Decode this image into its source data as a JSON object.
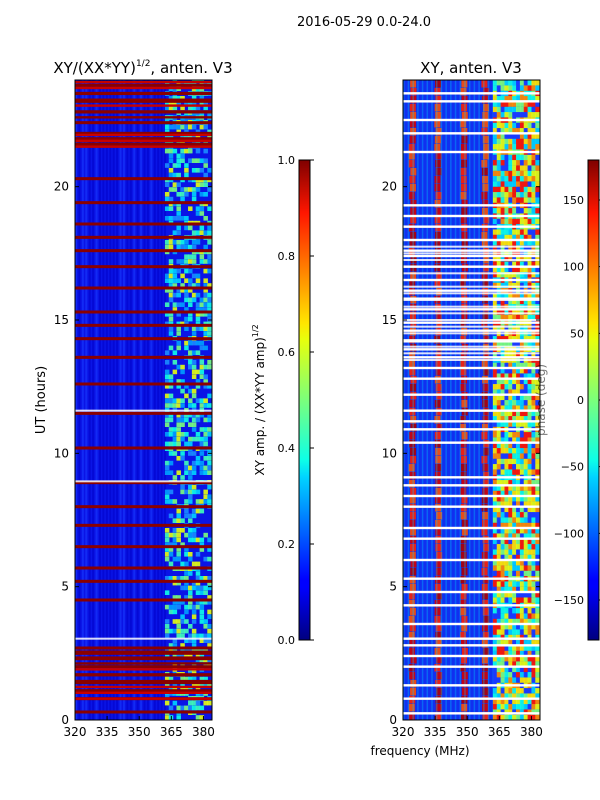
{
  "figure": {
    "suptitle": "2016-05-29 0.0-24.0"
  },
  "chart_data": [
    {
      "type": "heatmap",
      "title_main": "XY/(XX*YY)",
      "title_sup": "1/2",
      "title_tail": ", anten. V3",
      "ylabel": "UT (hours)",
      "xlabel": "",
      "xlim": [
        320,
        384
      ],
      "ylim": [
        0,
        24
      ],
      "xticks": [
        320,
        335,
        350,
        365,
        380
      ],
      "yticks": [
        0,
        5,
        10,
        15,
        20
      ],
      "band_edges_mhz": [
        320,
        362,
        384
      ],
      "colorbar": {
        "label_main": "XY amp. / (XX*YY amp)",
        "label_sup": "1/2",
        "range": [
          0.0,
          1.0
        ],
        "ticks": [
          "0.0",
          "0.2",
          "0.4",
          "0.6",
          "0.8",
          "1.0"
        ],
        "tick_values": [
          0.0,
          0.2,
          0.4,
          0.6,
          0.8,
          1.0
        ],
        "colormap": "jet"
      },
      "saturated_rows_ut": [
        0.3,
        0.8,
        1.1,
        1.4,
        1.7,
        2.0,
        2.3,
        2.5,
        2.7,
        4.5,
        5.2,
        5.7,
        6.5,
        7.3,
        8.0,
        8.9,
        10.2,
        11.5,
        12.6,
        13.6,
        14.3,
        14.8,
        15.3,
        16.2,
        17.0,
        17.6,
        18.1,
        18.6,
        19.4,
        20.3,
        21.6,
        21.8,
        22.0,
        22.4,
        22.8,
        23.2,
        23.5,
        23.8
      ],
      "dropout_rows_ut": [
        3.05,
        11.6,
        8.95
      ]
    },
    {
      "type": "heatmap",
      "title_main": "XY, anten. V3",
      "title_sup": "",
      "title_tail": "",
      "ylabel": "",
      "xlabel": "frequency (MHz)",
      "xlim": [
        320,
        384
      ],
      "ylim": [
        0,
        24
      ],
      "xticks": [
        320,
        335,
        350,
        365,
        380
      ],
      "yticks": [
        0,
        5,
        10,
        15,
        20
      ],
      "band_edges_mhz": [
        320,
        362,
        384
      ],
      "colorbar": {
        "label_main": "phase (deg)",
        "label_sup": "",
        "range": [
          -180,
          180
        ],
        "ticks": [
          "−150",
          "−100",
          "−50",
          "0",
          "50",
          "100",
          "150"
        ],
        "tick_values": [
          -150,
          -100,
          -50,
          0,
          50,
          100,
          150
        ],
        "colormap": "jet"
      },
      "phase_stripe_freqs_mhz": [
        324,
        336,
        348,
        358
      ],
      "white_rows_ut": [
        0.25,
        0.8,
        1.3,
        2.0,
        2.4,
        2.8,
        3.05,
        3.6,
        4.3,
        4.8,
        5.3,
        6.0,
        6.8,
        7.2,
        8.0,
        8.4,
        8.8,
        9.1,
        10.4,
        10.9,
        11.2,
        11.6,
        12.2,
        12.8,
        13.2,
        13.6,
        13.9,
        14.2,
        14.6,
        14.9,
        15.4,
        15.8,
        16.1,
        16.5,
        17.0,
        17.4,
        17.6,
        18.0,
        18.5,
        18.9,
        19.3,
        21.3,
        22.0,
        22.5,
        23.2,
        23.5
      ]
    }
  ]
}
